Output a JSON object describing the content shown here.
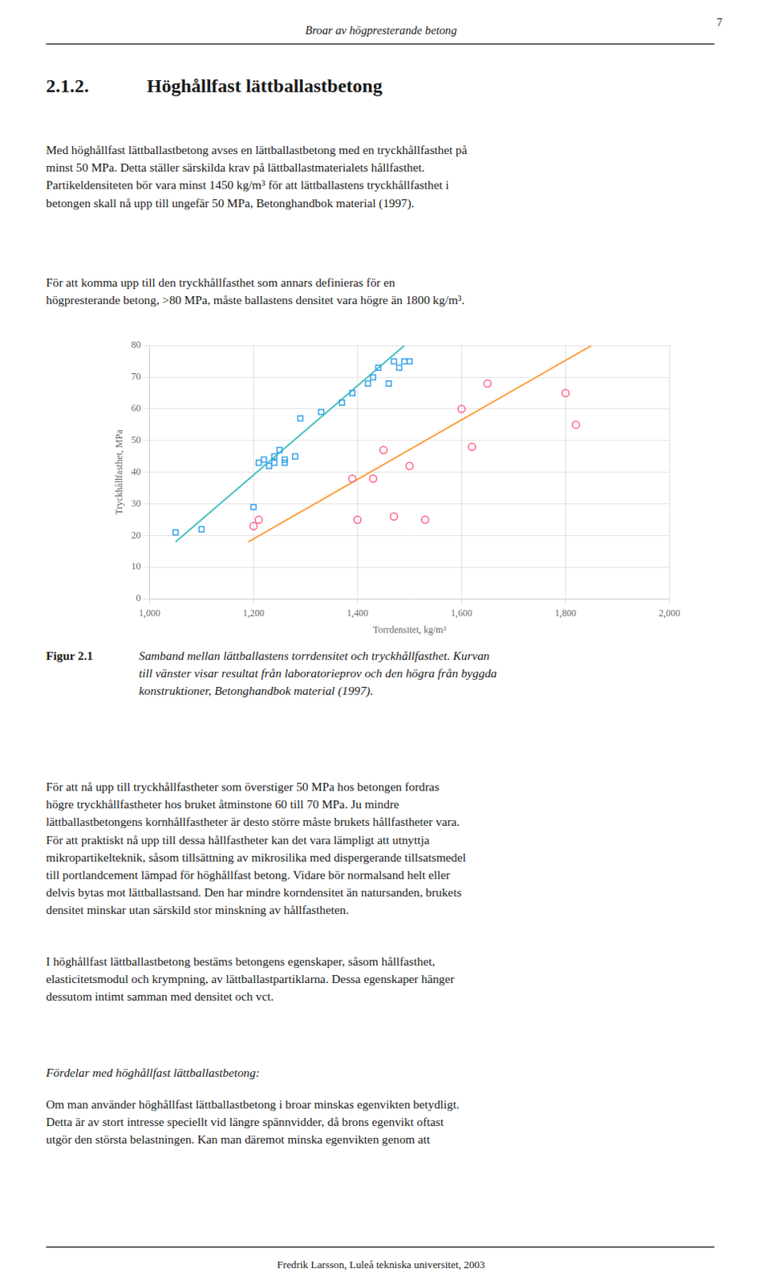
{
  "page_text": {
    "page_header": "Broar av högpresterande betong",
    "page_number": "7",
    "section_title_num": "2.1.2.",
    "section_title_text": "Höghållfast lättballastbetong",
    "para1": "Med höghållfast lättballastbetong avses en lättballastbetong med en tryckhållfasthet på\nminst 50 MPa. Detta ställer särskilda krav på lättballastmaterialets hållfasthet.\nPartikeldensiteten bör vara minst 1450 kg/m³ för att lättballastens tryckhållfasthet i\nbetongen skall nå upp till ungefär 50 MPa, Betonghandbok material (1997).",
    "para2": "För att komma upp till den tryckhållfasthet som annars definieras för en\nhögpresterande betong, >80 MPa, måste ballastens densitet vara högre än 1800 kg/m³.",
    "figure_label": "Figur 2.1",
    "figure_caption": "Samband mellan lättballastens torrdensitet och tryckhållfasthet. Kurvan\ntill vänster visar resultat från laboratorieprov och den högra från byggda\nkonstruktioner, Betonghandbok material (1997).",
    "para4": "För att nå upp till tryckhållfastheter som överstiger 50 MPa hos betongen fordras\nhögre tryckhållfastheter hos bruket åtminstone 60 till 70 MPa. Ju mindre\nlättballastbetongens kornhållfastheter är desto större måste brukets hållfastheter vara.\nFör att praktiskt nå upp till dessa hållfastheter kan det vara lämpligt att utnyttja\nmikropartikelteknik, såsom tillsättning av mikrosilika med dispergerande tillsatsmedel\ntill portlandcement lämpad för höghållfast betong. Vidare bör normalsand helt eller\ndelvis bytas mot lättballastsand. Den har mindre korndensitet än natursanden, brukets\ndensitet minskar utan särskild stor minskning av hållfastheten.",
    "para5": "I höghållfast lättballastbetong bestäms betongens egenskaper, såsom hållfasthet,\nelasticitetsmodul och krympning, av lättballastpartiklarna. Dessa egenskaper hänger\ndessutom intimt samman med densitet och vct.",
    "section_title2": "Fördelar med höghållfast lättballastbetong:",
    "para6": "Om man använder höghållfast lättballastbetong i broar minskas egenvikten betydligt.\nDetta är av stort intresse speciellt vid längre spännvidder, då brons egenvikt oftast\nutgör den största belastningen. Kan man däremot minska egenvikten genom att",
    "footer": "Fredrik Larsson, Luleå tekniska universitet, 2003"
  },
  "chart_data": {
    "type": "scatter",
    "xlabel": "Torrdensitet, kg/m³",
    "ylabel": "Tryckhållfasthet, MPa",
    "xlim": [
      1000,
      2000
    ],
    "ylim": [
      0,
      80
    ],
    "xticks": [
      1000,
      1200,
      1400,
      1600,
      1800,
      2000
    ],
    "yticks": [
      0,
      10,
      20,
      30,
      40,
      50,
      60,
      70,
      80
    ],
    "grid": true,
    "series": [
      {
        "marker": "square",
        "x": [
          1050,
          1100,
          1200,
          1210,
          1220,
          1230,
          1240,
          1240,
          1250,
          1260,
          1260,
          1280,
          1290,
          1330,
          1370,
          1390,
          1420,
          1430,
          1440,
          1460,
          1470,
          1480,
          1490,
          1500
        ],
        "values": [
          21,
          22,
          29,
          43,
          44,
          42,
          43,
          45,
          47,
          44,
          43,
          45,
          57,
          59,
          62,
          65,
          68,
          70,
          73,
          68,
          75,
          73,
          75,
          75
        ]
      },
      {
        "marker": "circle",
        "x": [
          1200,
          1210,
          1390,
          1400,
          1430,
          1450,
          1470,
          1500,
          1530,
          1600,
          1620,
          1650,
          1800,
          1820
        ],
        "values": [
          23,
          25,
          38,
          25,
          38,
          47,
          26,
          42,
          25,
          60,
          48,
          68,
          65,
          55
        ]
      },
      {
        "type": "line",
        "line_style": "solid",
        "x": [
          1050,
          1490
        ],
        "values": [
          18,
          80
        ]
      },
      {
        "type": "line",
        "line_style": "solid",
        "x": [
          1190,
          1850
        ],
        "values": [
          18,
          80
        ]
      }
    ]
  }
}
